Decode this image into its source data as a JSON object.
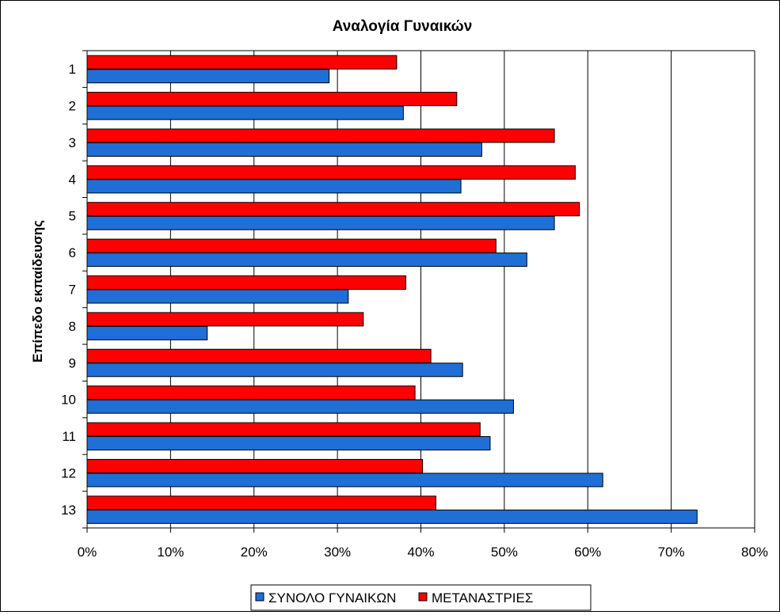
{
  "chart_data": {
    "type": "bar",
    "orientation": "horizontal",
    "title": "Αναλογία Γυναικών",
    "xlabel": "",
    "ylabel": "Επίπεδο εκπαίδευσης",
    "categories": [
      "1",
      "2",
      "3",
      "4",
      "5",
      "6",
      "7",
      "8",
      "9",
      "10",
      "11",
      "12",
      "13"
    ],
    "x_ticks": [
      "0%",
      "10%",
      "20%",
      "30%",
      "40%",
      "50%",
      "60%",
      "70%",
      "80%"
    ],
    "xlim": [
      0,
      80
    ],
    "grid": true,
    "legend_position": "bottom",
    "series": [
      {
        "name": "ΣΥΝΟΛΟ ΓΥΝΑΙΚΩΝ",
        "color": "#1f6fd6",
        "values": [
          29.0,
          37.9,
          47.3,
          44.8,
          56.0,
          52.7,
          31.3,
          14.4,
          45.0,
          51.1,
          48.3,
          61.8,
          73.1
        ]
      },
      {
        "name": "ΜΕΤΑΝΑΣΤΡΙΕΣ",
        "color": "#ff0000",
        "values": [
          37.1,
          44.3,
          56.0,
          58.5,
          59.0,
          49.0,
          38.2,
          33.1,
          41.2,
          39.3,
          47.1,
          40.2,
          41.8
        ]
      }
    ]
  }
}
